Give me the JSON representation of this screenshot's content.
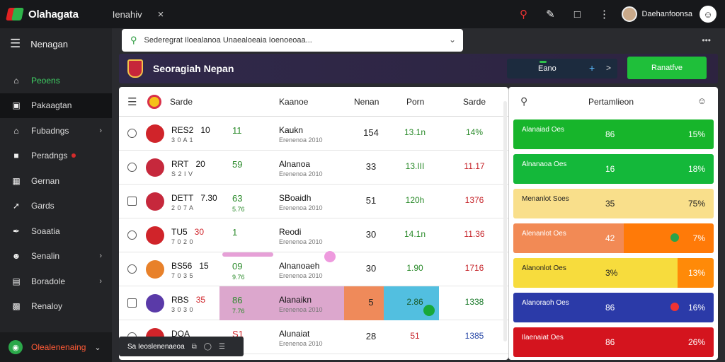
{
  "app": {
    "title": "Olahagata",
    "tab_label": "Ienahiv",
    "tab_close": "×"
  },
  "top": {
    "user_name": "Daehanfoonsa",
    "icons": [
      "search-icon",
      "puzzle-icon",
      "chat-icon",
      "kebab-icon"
    ]
  },
  "sidebar": {
    "header": "Nenagan",
    "items": [
      {
        "label": "Peoens",
        "icon": "home-icon",
        "green": true
      },
      {
        "label": "Pakaagtan",
        "icon": "briefcase-icon",
        "active": true
      },
      {
        "label": "Fubadngs",
        "icon": "house-icon",
        "chevron": true
      },
      {
        "label": "Peradngs",
        "icon": "display-icon",
        "dot": true
      },
      {
        "label": "Gernan",
        "icon": "grid-icon"
      },
      {
        "label": "Gards",
        "icon": "share-icon"
      },
      {
        "label": "Soaatia",
        "icon": "pen-icon"
      },
      {
        "label": "Senalin",
        "icon": "person-icon",
        "chevron": true
      },
      {
        "label": "Boradole",
        "icon": "chart-icon",
        "chevron": true
      },
      {
        "label": "Renaloy",
        "icon": "report-icon"
      }
    ],
    "footer": "Olealenenaing"
  },
  "search": {
    "value": "Sederegrat Iloealanoa Unaealoeaia Ioenoeoaa..."
  },
  "banner": {
    "title": "Seoragiah Nepan",
    "pill_label": "Eano",
    "plus": "+",
    "arrow": ">",
    "button": "Ranatfve"
  },
  "table": {
    "headers": [
      "Sarde",
      "Kaanoe",
      "Nenan",
      "Porn",
      "Sarde"
    ],
    "rows": [
      {
        "code": "RES2",
        "num": "10",
        "sub": "3 0 A 1",
        "val": "11",
        "valsub": "",
        "name": "Kaukn",
        "nsub": "Erenenoa 2010",
        "c4": "154",
        "c5": "13.1n",
        "c6": "14%",
        "badge": "#d0242a",
        "chk": "round"
      },
      {
        "code": "RRT",
        "num": "20",
        "sub": "S 2 I V",
        "val": "59",
        "valsub": "",
        "name": "Alnanoa",
        "nsub": "Erenenoa 2010",
        "c4": "33",
        "c5": "13.III",
        "c6": "11.17",
        "badge": "#c6283c",
        "chk": "round"
      },
      {
        "code": "DETT",
        "num": "7.30",
        "sub": "2 0 7 A",
        "val": "63",
        "valsub": "5.76",
        "name": "SBoaidh",
        "nsub": "Erenenoa 2010",
        "c4": "51",
        "c5": "120h",
        "c6": "1376",
        "badge": "#c6283c",
        "chk": "square"
      },
      {
        "code": "TU5",
        "num": "30",
        "sub": "7 0 2 0",
        "val": "1",
        "valsub": "",
        "name": "Reodi",
        "nsub": "Erenenoa 2010",
        "c4": "30",
        "c5": "14.1n",
        "c6": "11.36",
        "badge": "#d0242a",
        "chk": "round"
      },
      {
        "code": "BS56",
        "num": "15",
        "sub": "7 0 3 5",
        "val": "09",
        "valsub": "9.76",
        "name": "Alnanoaeh",
        "nsub": "Erenenoa 2010",
        "c4": "30",
        "c5": "1.90",
        "c6": "1716",
        "badge": "#e8812a",
        "chk": "round"
      },
      {
        "code": "RBS",
        "num": "35",
        "sub": "3 0 3 0",
        "val": "86",
        "valsub": "7.76",
        "name": "Alanaikn",
        "nsub": "Erenenoa 2010",
        "c4": "5",
        "c5": "2.86",
        "c6": "1338",
        "badge": "#5a3aa8",
        "chk": "square"
      },
      {
        "code": "DOA",
        "num": "",
        "sub": "",
        "val": "S1",
        "valsub": "",
        "name": "Alunaiat",
        "nsub": "Erenenoa 2010",
        "c4": "28",
        "c5": "51",
        "c6": "1385",
        "badge": "#d0242a",
        "chk": "round"
      }
    ]
  },
  "toast": {
    "text": "Sa Ieoslenenaeoa",
    "icons": [
      "clip-icon",
      "chat-icon",
      "list-icon"
    ]
  },
  "rpanel": {
    "title": "Pertamlieon",
    "bars": [
      {
        "label": "Alanaiad Oes",
        "value": "86",
        "pct": "15%",
        "color": "#17b52b",
        "fill": 1.0,
        "text": "#fff"
      },
      {
        "label": "Alnanaoa Oes",
        "value": "16",
        "pct": "18%",
        "color": "#14b83a",
        "fill": 1.0,
        "text": "#fff"
      },
      {
        "label": "Menanlot Soes",
        "value": "35",
        "pct": "75%",
        "color": "#f9df8b",
        "fill": 1.0,
        "text": "#222"
      },
      {
        "label": "Alenanlot Oes",
        "value": "42",
        "pct": "7%",
        "color": "#f28a55",
        "fill": 0.55,
        "rest": "#ff7a08",
        "mark": "#2aa34a",
        "text": "#fff"
      },
      {
        "label": "Alanonlot Oes",
        "value": "3%",
        "pct": "13%",
        "color": "#f7dc3d",
        "fill": 0.82,
        "rest": "#ff8a08",
        "text": "#222"
      },
      {
        "label": "Alanoraoh Oes",
        "value": "86",
        "pct": "16%",
        "color": "#2b3aa8",
        "fill": 1.0,
        "mark": "#e33",
        "text": "#fff"
      },
      {
        "label": "Ilaenaiat Oes",
        "value": "86",
        "pct": "26%",
        "color": "#d4141e",
        "fill": 1.0,
        "text": "#fff"
      }
    ]
  }
}
